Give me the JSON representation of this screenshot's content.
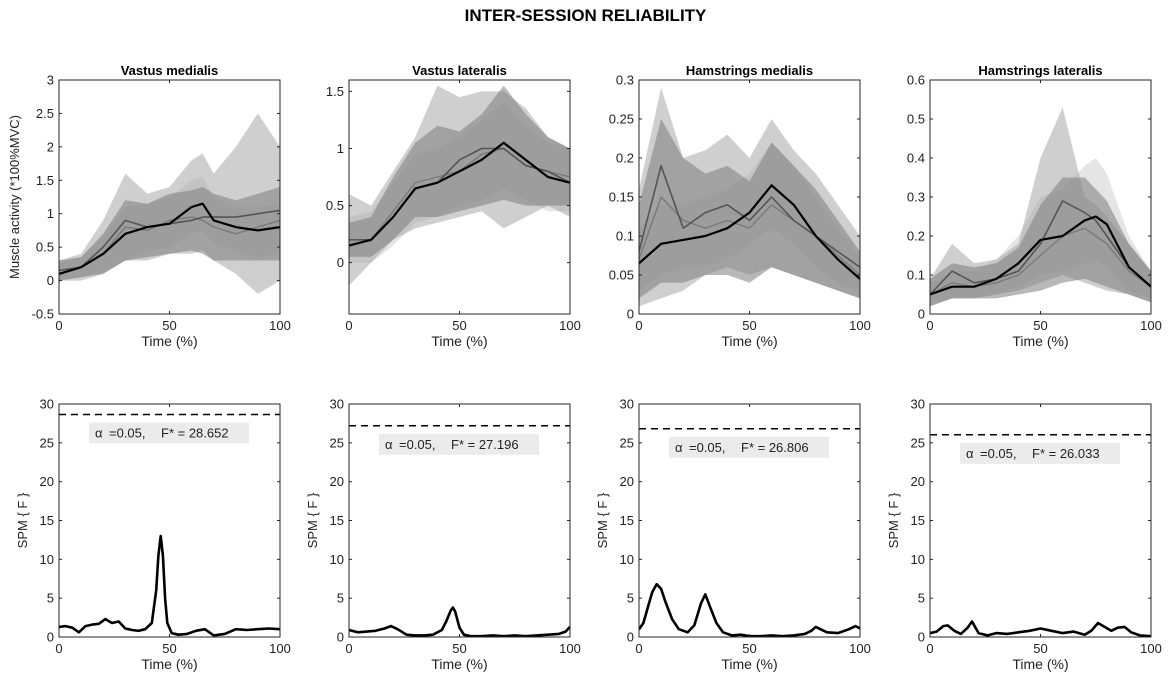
{
  "figure_title": "INTER-SESSION RELIABILITY",
  "colors": {
    "axis": "#000000",
    "mean_dark": "#000000",
    "mean_mid": "#555555",
    "band_light": "#cfcfcf",
    "band_mid": "#a8a8a8",
    "band_dark": "#7d7d7d",
    "threshold_box": "#ebebeb"
  },
  "chart_data": [
    {
      "id": "vm-emg",
      "type": "area",
      "title": "Vastus medialis",
      "xlabel": "Time (%)",
      "ylabel": "Muscle activity (*100%MVC)",
      "xlim": [
        0,
        100
      ],
      "ylim": [
        -0.5,
        3
      ],
      "xticks": [
        "0",
        "50",
        "100"
      ],
      "yticks": [
        "-0.5",
        "0",
        "0.5",
        "1",
        "1.5",
        "2",
        "2.5",
        "3"
      ],
      "x": [
        0,
        10,
        20,
        30,
        40,
        50,
        60,
        65,
        70,
        80,
        90,
        100
      ],
      "series": [
        {
          "mean": [
            0.1,
            0.2,
            0.4,
            0.7,
            0.8,
            0.85,
            1.1,
            1.15,
            0.9,
            0.8,
            0.75,
            0.8
          ],
          "lower": [
            0.0,
            0.05,
            0.15,
            0.3,
            0.45,
            0.5,
            0.7,
            0.75,
            0.55,
            0.45,
            0.35,
            0.4
          ],
          "upper": [
            0.25,
            0.35,
            0.65,
            1.1,
            1.15,
            1.25,
            1.5,
            1.55,
            1.25,
            1.1,
            1.1,
            1.15
          ]
        },
        {
          "mean": [
            0.15,
            0.2,
            0.5,
            0.9,
            0.8,
            0.85,
            0.9,
            0.95,
            0.95,
            0.95,
            1.0,
            1.05
          ],
          "lower": [
            0.0,
            0.0,
            0.1,
            0.3,
            0.3,
            0.4,
            0.4,
            0.45,
            0.3,
            0.1,
            -0.2,
            0.0
          ],
          "upper": [
            0.3,
            0.4,
            0.9,
            1.6,
            1.3,
            1.4,
            1.8,
            1.9,
            1.6,
            2.0,
            2.5,
            2.0
          ]
        },
        {
          "mean": [
            0.1,
            0.2,
            0.4,
            0.8,
            0.75,
            0.9,
            0.95,
            0.9,
            0.8,
            0.7,
            0.8,
            0.9
          ],
          "lower": [
            0.0,
            0.05,
            0.1,
            0.3,
            0.35,
            0.4,
            0.45,
            0.4,
            0.3,
            0.3,
            0.3,
            0.3
          ],
          "upper": [
            0.3,
            0.35,
            0.7,
            1.2,
            1.15,
            1.3,
            1.35,
            1.4,
            1.3,
            1.2,
            1.3,
            1.4
          ]
        }
      ]
    },
    {
      "id": "vl-emg",
      "type": "area",
      "title": "Vastus lateralis",
      "xlabel": "Time (%)",
      "ylabel": "",
      "xlim": [
        0,
        100
      ],
      "ylim": [
        -0.45,
        1.6
      ],
      "xticks": [
        "0",
        "50",
        "100"
      ],
      "yticks": [
        "0",
        "0.5",
        "1",
        "1.5"
      ],
      "x": [
        0,
        10,
        20,
        30,
        40,
        50,
        60,
        70,
        80,
        90,
        100
      ],
      "series": [
        {
          "mean": [
            0.15,
            0.2,
            0.4,
            0.65,
            0.7,
            0.8,
            0.9,
            1.05,
            0.9,
            0.75,
            0.7
          ],
          "lower": [
            0.0,
            0.0,
            0.15,
            0.35,
            0.4,
            0.5,
            0.55,
            0.65,
            0.55,
            0.45,
            0.45
          ],
          "upper": [
            0.4,
            0.45,
            0.7,
            0.95,
            1.0,
            1.1,
            1.25,
            1.4,
            1.2,
            1.05,
            1.0
          ]
        },
        {
          "mean": [
            0.2,
            0.2,
            0.4,
            0.65,
            0.7,
            0.9,
            1.0,
            1.0,
            0.85,
            0.8,
            0.7
          ],
          "lower": [
            -0.2,
            0.0,
            0.2,
            0.3,
            0.35,
            0.4,
            0.45,
            0.3,
            0.4,
            0.5,
            0.4
          ],
          "upper": [
            0.6,
            0.5,
            0.8,
            1.1,
            1.55,
            1.45,
            1.5,
            1.5,
            1.35,
            1.1,
            1.0
          ]
        },
        {
          "mean": [
            0.15,
            0.2,
            0.45,
            0.7,
            0.75,
            0.8,
            0.95,
            1.0,
            0.85,
            0.8,
            0.75
          ],
          "lower": [
            0.05,
            0.05,
            0.2,
            0.4,
            0.4,
            0.45,
            0.5,
            0.55,
            0.5,
            0.5,
            0.5
          ],
          "upper": [
            0.35,
            0.4,
            0.75,
            1.05,
            1.2,
            1.15,
            1.3,
            1.55,
            1.3,
            1.1,
            1.0
          ]
        }
      ]
    },
    {
      "id": "hm-emg",
      "type": "area",
      "title": "Hamstrings medialis",
      "xlabel": "Time (%)",
      "ylabel": "",
      "xlim": [
        0,
        100
      ],
      "ylim": [
        0,
        0.3
      ],
      "xticks": [
        "0",
        "50",
        "100"
      ],
      "yticks": [
        "0",
        "0.05",
        "0.1",
        "0.15",
        "0.2",
        "0.25",
        "0.3"
      ],
      "x": [
        0,
        10,
        20,
        30,
        40,
        50,
        60,
        70,
        80,
        90,
        100
      ],
      "series": [
        {
          "mean": [
            0.065,
            0.09,
            0.095,
            0.1,
            0.11,
            0.13,
            0.165,
            0.14,
            0.1,
            0.07,
            0.045
          ],
          "lower": [
            0.03,
            0.05,
            0.06,
            0.06,
            0.07,
            0.09,
            0.11,
            0.09,
            0.06,
            0.04,
            0.03
          ],
          "upper": [
            0.11,
            0.14,
            0.14,
            0.15,
            0.16,
            0.18,
            0.22,
            0.19,
            0.15,
            0.11,
            0.07
          ]
        },
        {
          "mean": [
            0.08,
            0.19,
            0.11,
            0.13,
            0.14,
            0.12,
            0.15,
            0.12,
            0.1,
            0.08,
            0.06
          ],
          "lower": [
            0.01,
            0.02,
            0.03,
            0.05,
            0.06,
            0.05,
            0.06,
            0.05,
            0.04,
            0.03,
            0.02
          ],
          "upper": [
            0.16,
            0.29,
            0.2,
            0.21,
            0.23,
            0.2,
            0.25,
            0.21,
            0.18,
            0.14,
            0.1
          ]
        },
        {
          "mean": [
            0.07,
            0.15,
            0.12,
            0.11,
            0.12,
            0.11,
            0.14,
            0.12,
            0.1,
            0.075,
            0.05
          ],
          "lower": [
            0.02,
            0.04,
            0.04,
            0.05,
            0.05,
            0.04,
            0.06,
            0.05,
            0.04,
            0.03,
            0.02
          ],
          "upper": [
            0.14,
            0.25,
            0.2,
            0.18,
            0.19,
            0.17,
            0.22,
            0.19,
            0.16,
            0.12,
            0.08
          ]
        }
      ]
    },
    {
      "id": "hl-emg",
      "type": "area",
      "title": "Hamstrings lateralis",
      "xlabel": "Time (%)",
      "ylabel": "",
      "xlim": [
        0,
        100
      ],
      "ylim": [
        0,
        0.6
      ],
      "xticks": [
        "0",
        "50",
        "100"
      ],
      "yticks": [
        "0",
        "0.1",
        "0.2",
        "0.3",
        "0.4",
        "0.5",
        "0.6"
      ],
      "x": [
        0,
        10,
        20,
        30,
        40,
        50,
        60,
        70,
        75,
        80,
        90,
        100
      ],
      "series": [
        {
          "mean": [
            0.05,
            0.07,
            0.07,
            0.09,
            0.13,
            0.19,
            0.2,
            0.24,
            0.25,
            0.23,
            0.12,
            0.07
          ],
          "lower": [
            0.03,
            0.04,
            0.04,
            0.05,
            0.07,
            0.1,
            0.11,
            0.13,
            0.14,
            0.12,
            0.06,
            0.04
          ],
          "upper": [
            0.08,
            0.11,
            0.11,
            0.14,
            0.2,
            0.3,
            0.32,
            0.38,
            0.4,
            0.36,
            0.2,
            0.11
          ]
        },
        {
          "mean": [
            0.05,
            0.11,
            0.08,
            0.09,
            0.11,
            0.18,
            0.29,
            0.26,
            0.24,
            0.2,
            0.12,
            0.07
          ],
          "lower": [
            0.02,
            0.04,
            0.04,
            0.05,
            0.06,
            0.08,
            0.1,
            0.08,
            0.07,
            0.06,
            0.05,
            0.03
          ],
          "upper": [
            0.09,
            0.18,
            0.13,
            0.14,
            0.18,
            0.4,
            0.53,
            0.3,
            0.28,
            0.25,
            0.18,
            0.11
          ]
        },
        {
          "mean": [
            0.05,
            0.08,
            0.07,
            0.08,
            0.1,
            0.15,
            0.2,
            0.22,
            0.2,
            0.18,
            0.11,
            0.07
          ],
          "lower": [
            0.02,
            0.04,
            0.04,
            0.04,
            0.05,
            0.06,
            0.08,
            0.09,
            0.08,
            0.07,
            0.05,
            0.03
          ],
          "upper": [
            0.09,
            0.13,
            0.12,
            0.13,
            0.17,
            0.28,
            0.35,
            0.35,
            0.32,
            0.29,
            0.18,
            0.11
          ]
        }
      ]
    },
    {
      "id": "vm-spm",
      "type": "line",
      "title": "",
      "xlabel": "Time (%)",
      "ylabel": "SPM { F }",
      "xlim": [
        0,
        100
      ],
      "ylim": [
        0,
        30
      ],
      "xticks": [
        "0",
        "50",
        "100"
      ],
      "yticks": [
        "0",
        "5",
        "10",
        "15",
        "20",
        "25",
        "30"
      ],
      "threshold": 28.652,
      "annotation": {
        "alpha_symbol": "α",
        "alpha_text": "=0.05,",
        "fstar_text": "F* = 28.652"
      },
      "x": [
        0,
        3,
        6,
        9,
        12,
        15,
        18,
        21,
        24,
        27,
        30,
        33,
        36,
        39,
        42,
        44,
        45,
        46,
        47,
        48,
        49,
        51,
        54,
        58,
        62,
        66,
        70,
        75,
        80,
        85,
        90,
        95,
        100
      ],
      "values": [
        1.3,
        1.4,
        1.2,
        0.6,
        1.4,
        1.6,
        1.7,
        2.3,
        1.8,
        2.0,
        1.1,
        0.9,
        0.8,
        1.0,
        1.8,
        6.0,
        10.5,
        13.0,
        10.5,
        5.0,
        1.8,
        0.5,
        0.3,
        0.4,
        0.8,
        1.0,
        0.2,
        0.4,
        1.0,
        0.9,
        1.0,
        1.1,
        1.0
      ]
    },
    {
      "id": "vl-spm",
      "type": "line",
      "title": "",
      "xlabel": "Time (%)",
      "ylabel": "SPM { F }",
      "xlim": [
        0,
        100
      ],
      "ylim": [
        0,
        30
      ],
      "xticks": [
        "0",
        "50",
        "100"
      ],
      "yticks": [
        "0",
        "5",
        "10",
        "15",
        "20",
        "25",
        "30"
      ],
      "threshold": 27.196,
      "annotation": {
        "alpha_symbol": "α",
        "alpha_text": "=0.05,",
        "fstar_text": "F* = 27.196"
      },
      "x": [
        0,
        4,
        8,
        12,
        16,
        19,
        22,
        26,
        30,
        34,
        38,
        42,
        44,
        46,
        47,
        48,
        50,
        52,
        55,
        60,
        65,
        70,
        75,
        80,
        85,
        90,
        95,
        98,
        100
      ],
      "values": [
        0.9,
        0.6,
        0.7,
        0.8,
        1.1,
        1.4,
        1.0,
        0.3,
        0.2,
        0.2,
        0.3,
        0.9,
        2.0,
        3.4,
        3.8,
        3.3,
        1.2,
        0.3,
        0.1,
        0.1,
        0.2,
        0.1,
        0.2,
        0.1,
        0.2,
        0.3,
        0.4,
        0.7,
        1.3
      ]
    },
    {
      "id": "hm-spm",
      "type": "line",
      "title": "",
      "xlabel": "Time (%)",
      "ylabel": "SPM { F }",
      "xlim": [
        0,
        100
      ],
      "ylim": [
        0,
        30
      ],
      "xticks": [
        "0",
        "50",
        "100"
      ],
      "yticks": [
        "0",
        "5",
        "10",
        "15",
        "20",
        "25",
        "30"
      ],
      "threshold": 26.806,
      "annotation": {
        "alpha_symbol": "α",
        "alpha_text": "=0.05,",
        "fstar_text": "F* = 26.806"
      },
      "x": [
        0,
        2,
        4,
        6,
        8,
        10,
        12,
        15,
        18,
        22,
        25,
        28,
        30,
        32,
        35,
        38,
        42,
        46,
        50,
        55,
        60,
        65,
        70,
        75,
        78,
        80,
        85,
        90,
        95,
        98,
        100
      ],
      "values": [
        1.0,
        1.8,
        3.8,
        5.8,
        6.8,
        6.2,
        4.5,
        2.3,
        1.0,
        0.6,
        1.5,
        4.3,
        5.5,
        4.0,
        1.8,
        0.6,
        0.2,
        0.3,
        0.1,
        0.1,
        0.2,
        0.1,
        0.2,
        0.4,
        0.8,
        1.3,
        0.6,
        0.5,
        1.0,
        1.4,
        1.1
      ]
    },
    {
      "id": "hl-spm",
      "type": "line",
      "title": "",
      "xlabel": "Time (%)",
      "ylabel": "SPM { F }",
      "xlim": [
        0,
        100
      ],
      "ylim": [
        0,
        30
      ],
      "xticks": [
        "0",
        "50",
        "100"
      ],
      "yticks": [
        "0",
        "5",
        "10",
        "15",
        "20",
        "25",
        "30"
      ],
      "threshold": 26.033,
      "annotation": {
        "alpha_symbol": "α",
        "alpha_text": "=0.05,",
        "fstar_text": "F* = 26.033"
      },
      "x": [
        0,
        3,
        6,
        8,
        11,
        14,
        17,
        19,
        22,
        26,
        30,
        35,
        40,
        45,
        50,
        55,
        60,
        65,
        70,
        73,
        76,
        79,
        82,
        85,
        88,
        91,
        95,
        100
      ],
      "values": [
        0.5,
        0.7,
        1.4,
        1.5,
        0.8,
        0.4,
        1.2,
        2.0,
        0.5,
        0.2,
        0.5,
        0.4,
        0.6,
        0.8,
        1.1,
        0.8,
        0.5,
        0.7,
        0.3,
        0.8,
        1.8,
        1.3,
        0.8,
        1.2,
        1.3,
        0.6,
        0.2,
        0.1
      ]
    }
  ]
}
